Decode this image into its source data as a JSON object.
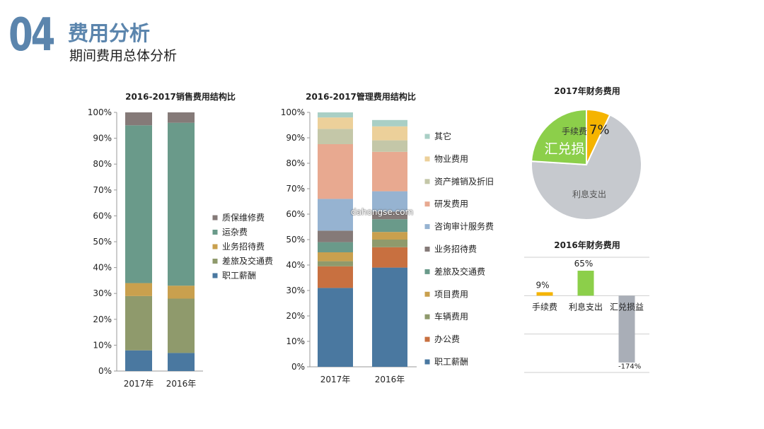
{
  "header": {
    "number": "04",
    "title": "费用分析",
    "subtitle": "期间费用总体分析"
  },
  "watermark": "dahongse.com",
  "colors": {
    "brand": "#5b85ad"
  },
  "chart_data": [
    {
      "id": "sales",
      "type": "bar",
      "stacked": "percent",
      "title": "2016-2017销售费用结构比",
      "categories": [
        "2017年",
        "2016年"
      ],
      "ylim": [
        0,
        100
      ],
      "yticks": [
        "0%",
        "10%",
        "20%",
        "30%",
        "40%",
        "50%",
        "60%",
        "70%",
        "80%",
        "90%",
        "100%"
      ],
      "legend_position": "right",
      "series": [
        {
          "name": "职工薪酬",
          "color": "#4a78a0",
          "values": [
            8,
            7
          ]
        },
        {
          "name": "差旅及交通费",
          "color": "#8f9a6c",
          "values": [
            21,
            21
          ]
        },
        {
          "name": "业务招待费",
          "color": "#c9a04e",
          "values": [
            5,
            5
          ]
        },
        {
          "name": "运杂费",
          "color": "#6a9a8a",
          "values": [
            61,
            63
          ]
        },
        {
          "name": "质保维修费",
          "color": "#857a78",
          "values": [
            5,
            4
          ]
        }
      ]
    },
    {
      "id": "admin",
      "type": "bar",
      "stacked": "percent",
      "title": "2016-2017管理费用结构比",
      "categories": [
        "2017年",
        "2016年"
      ],
      "ylim": [
        0,
        100
      ],
      "yticks": [
        "0%",
        "10%",
        "20%",
        "30%",
        "40%",
        "50%",
        "60%",
        "70%",
        "80%",
        "90%",
        "100%"
      ],
      "legend_position": "right",
      "series": [
        {
          "name": "职工薪酬",
          "color": "#4a78a0",
          "values": [
            31,
            39
          ]
        },
        {
          "name": "办公费",
          "color": "#c87040",
          "values": [
            8.5,
            8
          ]
        },
        {
          "name": "车辆费用",
          "color": "#8f9a6c",
          "values": [
            2,
            3
          ]
        },
        {
          "name": "项目费用",
          "color": "#c9a04e",
          "values": [
            3.5,
            3
          ]
        },
        {
          "name": "差旅及交通费",
          "color": "#6a9a8a",
          "values": [
            4,
            5
          ]
        },
        {
          "name": "业务招待费",
          "color": "#857a78",
          "values": [
            4.5,
            3
          ]
        },
        {
          "name": "咨询审计服务费",
          "color": "#96b3d1",
          "values": [
            12.5,
            8
          ]
        },
        {
          "name": "研发费用",
          "color": "#e8a990",
          "values": [
            21.5,
            15.5
          ]
        },
        {
          "name": "资产摊销及折旧",
          "color": "#c4c7a8",
          "values": [
            6,
            4.5
          ]
        },
        {
          "name": "物业费用",
          "color": "#ecd09a",
          "values": [
            4.5,
            5.5
          ]
        },
        {
          "name": "其它",
          "color": "#a9cfc5",
          "values": [
            2,
            2.5
          ]
        }
      ]
    },
    {
      "id": "finance2017",
      "type": "pie",
      "title": "2017年财务费用",
      "slices": [
        {
          "name": "手续费",
          "value": 7,
          "label": "7%",
          "color": "#f5b400"
        },
        {
          "name": "利息支出",
          "value": 69,
          "color": "#c6c9ce"
        },
        {
          "name": "汇兑损",
          "value": 24,
          "color": "#8ccf4a"
        }
      ]
    },
    {
      "id": "finance2016",
      "type": "bar",
      "title": "2016年财务费用",
      "categories": [
        "手续费",
        "利息支出",
        "汇兑损益"
      ],
      "values": [
        9,
        65,
        -174
      ],
      "labels": [
        "9%",
        "65%",
        "-174%"
      ],
      "colors": [
        "#f5b400",
        "#8ccf4a",
        "#a9aeb7"
      ],
      "ylim": [
        -200,
        100
      ]
    }
  ]
}
